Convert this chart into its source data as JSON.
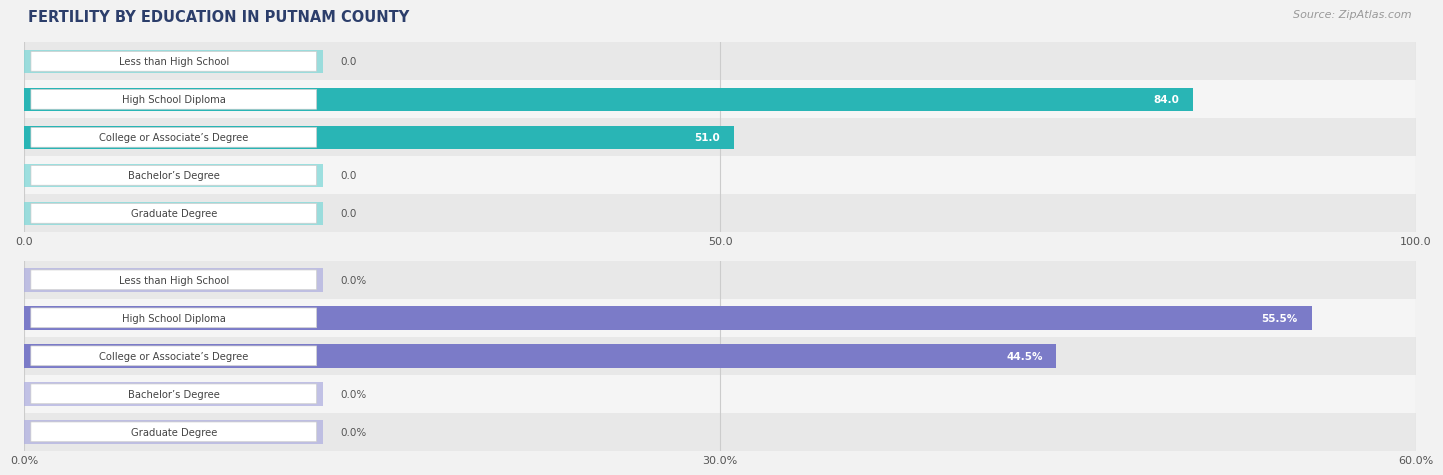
{
  "title": "FERTILITY BY EDUCATION IN PUTNAM COUNTY",
  "source": "Source: ZipAtlas.com",
  "chart1": {
    "categories": [
      "Less than High School",
      "High School Diploma",
      "College or Associate’s Degree",
      "Bachelor’s Degree",
      "Graduate Degree"
    ],
    "values": [
      0.0,
      84.0,
      51.0,
      0.0,
      0.0
    ],
    "value_labels": [
      "0.0",
      "84.0",
      "51.0",
      "0.0",
      "0.0"
    ],
    "xlim": [
      0,
      100
    ],
    "xticks": [
      0.0,
      50.0,
      100.0
    ],
    "xtick_labels": [
      "0.0",
      "50.0",
      "100.0"
    ],
    "bar_color_main": "#29b5b5",
    "bar_color_light": "#80d8d8",
    "value_threshold": 15
  },
  "chart2": {
    "categories": [
      "Less than High School",
      "High School Diploma",
      "College or Associate’s Degree",
      "Bachelor’s Degree",
      "Graduate Degree"
    ],
    "values": [
      0.0,
      55.5,
      44.5,
      0.0,
      0.0
    ],
    "value_labels": [
      "0.0%",
      "55.5%",
      "44.5%",
      "0.0%",
      "0.0%"
    ],
    "xlim": [
      0,
      60
    ],
    "xticks": [
      0.0,
      30.0,
      60.0
    ],
    "xtick_labels": [
      "0.0%",
      "30.0%",
      "60.0%"
    ],
    "bar_color_main": "#7b7bc8",
    "bar_color_light": "#b0b0e0",
    "value_threshold": 15,
    "value_suffix": "%"
  },
  "bg_color": "#f2f2f2",
  "row_colors": [
    "#e8e8e8",
    "#f5f5f5"
  ],
  "title_color": "#2c3e6b",
  "source_color": "#999999",
  "label_text_color": "#444444",
  "value_outside_color": "#555555",
  "white_box_color": "#ffffff"
}
